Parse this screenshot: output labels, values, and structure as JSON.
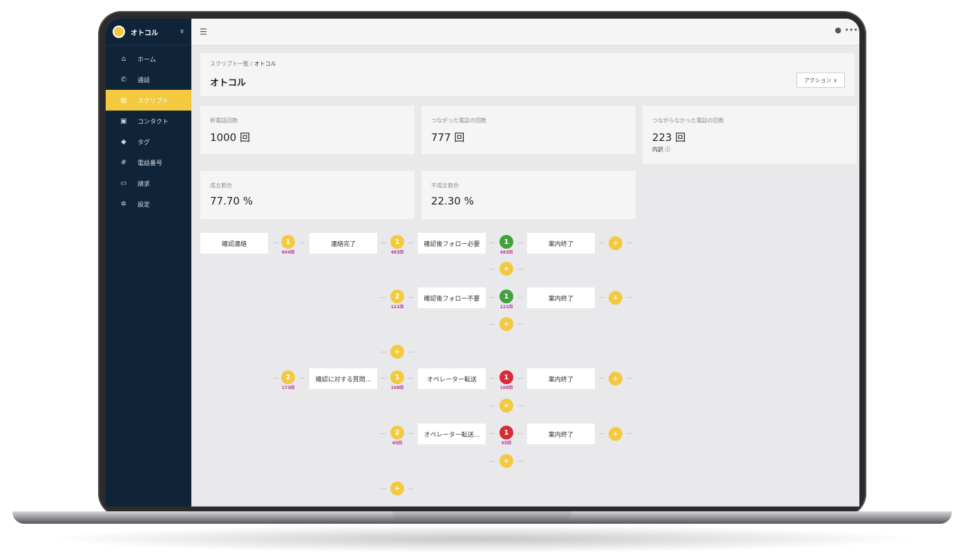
{
  "brand": {
    "name": "オトコル"
  },
  "sidebar": {
    "items": [
      {
        "label": "ホーム",
        "icon": "home-icon"
      },
      {
        "label": "通話",
        "icon": "phone-icon"
      },
      {
        "label": "スクリプト",
        "icon": "script-icon",
        "active": true
      },
      {
        "label": "コンタクト",
        "icon": "contact-card-icon"
      },
      {
        "label": "タグ",
        "icon": "tag-icon"
      },
      {
        "label": "電話番号",
        "icon": "hash-icon"
      },
      {
        "label": "請求",
        "icon": "credit-card-icon"
      },
      {
        "label": "設定",
        "icon": "gear-icon"
      }
    ]
  },
  "header": {
    "breadcrumb_parent": "スクリプト一覧",
    "breadcrumb_sep": "/",
    "breadcrumb_current": "オトコル",
    "title": "オトコル",
    "action_label": "アクション ∨"
  },
  "stats": [
    {
      "label": "新電話回数",
      "value": "1000 回"
    },
    {
      "label": "つながった電話の回数",
      "value": "777 回"
    },
    {
      "label": "つながらなかった電話の回数",
      "value": "223 回",
      "sub": "内訳 ⓘ"
    },
    {
      "label": "成立割合",
      "value": "77.70 %"
    },
    {
      "label": "不成立割合",
      "value": "22.30 %"
    }
  ],
  "flow": {
    "nodes": {
      "n1": "確認連絡",
      "n2": "連絡完了",
      "n3": "確認後フォロー必要",
      "n4": "案内終了",
      "n5": "確認後フォロー不要",
      "n6": "案内終了",
      "n7": "確認に対する質問...",
      "n8": "オペレーター転送",
      "n9": "案内終了",
      "n10": "オペレーター転送...",
      "n11": "案内終了"
    },
    "badges": {
      "b1": "1",
      "b2": "1",
      "b3": "1",
      "b4": "2",
      "b5": "1",
      "b6": "2",
      "b7": "1",
      "b8": "1",
      "b9": "2",
      "b10": "1"
    },
    "counts": {
      "b1": "604回",
      "b2": "483回",
      "b3": "483回",
      "b4": "121回",
      "b5": "121回",
      "b6": "173回",
      "b7": "108回",
      "b8": "108回",
      "b9": "65回",
      "b10": "65回"
    },
    "add_symbol": "+"
  },
  "colors": {
    "accent": "#f3c93f",
    "sidebar": "#0f2439",
    "success": "#3fa339",
    "danger": "#d92b34",
    "count": "#c0359b"
  }
}
